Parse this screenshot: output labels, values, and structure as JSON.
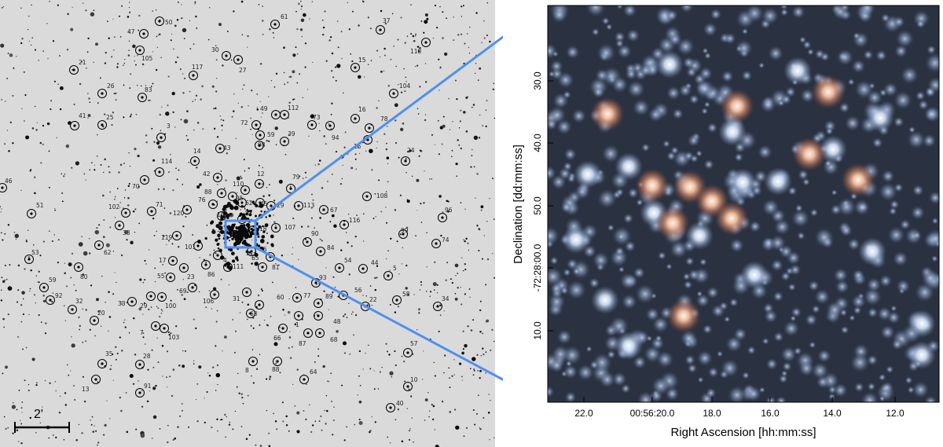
{
  "field": {
    "scale_bar_label": "2'",
    "stars": [
      {
        "id": "50",
        "x": 203,
        "y": 27,
        "lx": 210,
        "ly": 31
      },
      {
        "id": "47",
        "x": 183,
        "y": 43,
        "lx": 162,
        "ly": 43
      },
      {
        "id": "105",
        "x": 178,
        "y": 64,
        "lx": 180,
        "ly": 77
      },
      {
        "id": "61",
        "x": 350,
        "y": 31,
        "lx": 357,
        "ly": 24
      },
      {
        "id": "37",
        "x": 484,
        "y": 38,
        "lx": 487,
        "ly": 29
      },
      {
        "id": "118",
        "x": 542,
        "y": 54,
        "lx": 522,
        "ly": 68
      },
      {
        "id": "30",
        "x": 288,
        "y": 71,
        "lx": 269,
        "ly": 66
      },
      {
        "id": "27",
        "x": 303,
        "y": 76,
        "lx": 304,
        "ly": 92
      },
      {
        "id": "15",
        "x": 452,
        "y": 86,
        "lx": 456,
        "ly": 79
      },
      {
        "id": "21",
        "x": 94,
        "y": 89,
        "lx": 100,
        "ly": 82
      },
      {
        "id": "117",
        "x": 246,
        "y": 96,
        "lx": 244,
        "ly": 88
      },
      {
        "id": "104",
        "x": 501,
        "y": 119,
        "lx": 508,
        "ly": 112
      },
      {
        "id": "26",
        "x": 130,
        "y": 119,
        "lx": 136,
        "ly": 112
      },
      {
        "id": "83",
        "x": 181,
        "y": 124,
        "lx": 184,
        "ly": 117
      },
      {
        "id": "49",
        "x": 351,
        "y": 146,
        "lx": 331,
        "ly": 141
      },
      {
        "id": "112",
        "x": 362,
        "y": 146,
        "lx": 366,
        "ly": 140
      },
      {
        "id": "16",
        "x": 452,
        "y": 151,
        "lx": 456,
        "ly": 142
      },
      {
        "id": "78",
        "x": 470,
        "y": 163,
        "lx": 484,
        "ly": 154
      },
      {
        "id": "41",
        "x": 95,
        "y": 160,
        "lx": 100,
        "ly": 150
      },
      {
        "id": "25",
        "x": 130,
        "y": 159,
        "lx": 135,
        "ly": 152
      },
      {
        "id": "72",
        "x": 326,
        "y": 159,
        "lx": 306,
        "ly": 159
      },
      {
        "id": "73",
        "x": 397,
        "y": 159,
        "lx": 398,
        "ly": 152
      },
      {
        "id": "3",
        "x": 205,
        "y": 175,
        "lx": 212,
        "ly": 163
      },
      {
        "id": "59",
        "x": 331,
        "y": 172,
        "lx": 340,
        "ly": 174
      },
      {
        "id": "94",
        "x": 420,
        "y": 160,
        "lx": 422,
        "ly": 178
      },
      {
        "id": "98",
        "x": 330,
        "y": 185,
        "lx": 328,
        "ly": 187
      },
      {
        "id": "39",
        "x": 362,
        "y": 180,
        "lx": 366,
        "ly": 173
      },
      {
        "id": "15b",
        "x": 468,
        "y": 178,
        "lx": 450,
        "ly": 189
      },
      {
        "id": "24",
        "x": 516,
        "y": 205,
        "lx": 518,
        "ly": 194
      },
      {
        "id": "43",
        "x": 280,
        "y": 189,
        "lx": 284,
        "ly": 191
      },
      {
        "id": "14",
        "x": 248,
        "y": 205,
        "lx": 246,
        "ly": 195
      },
      {
        "id": "114",
        "x": 203,
        "y": 219,
        "lx": 205,
        "ly": 208
      },
      {
        "id": "42",
        "x": 277,
        "y": 226,
        "lx": 258,
        "ly": 224
      },
      {
        "id": "12",
        "x": 330,
        "y": 234,
        "lx": 327,
        "ly": 224
      },
      {
        "id": "79",
        "x": 370,
        "y": 240,
        "lx": 372,
        "ly": 228
      },
      {
        "id": "70",
        "x": 184,
        "y": 229,
        "lx": 168,
        "ly": 240
      },
      {
        "id": "110",
        "x": 312,
        "y": 242,
        "lx": 296,
        "ly": 237
      },
      {
        "id": "46",
        "x": 3,
        "y": 239,
        "lx": 6,
        "ly": 233
      },
      {
        "id": "88",
        "x": 282,
        "y": 246,
        "lx": 260,
        "ly": 247
      },
      {
        "id": "95",
        "x": 296,
        "y": 250,
        "lx": 300,
        "ly": 255
      },
      {
        "id": "62",
        "x": 308,
        "y": 258,
        "lx": 312,
        "ly": 261
      },
      {
        "id": "45",
        "x": 331,
        "y": 258,
        "lx": 331,
        "ly": 262
      },
      {
        "id": "108",
        "x": 467,
        "y": 250,
        "lx": 479,
        "ly": 252
      },
      {
        "id": "113",
        "x": 380,
        "y": 262,
        "lx": 386,
        "ly": 264
      },
      {
        "id": "29",
        "x": 345,
        "y": 262,
        "lx": 352,
        "ly": 264
      },
      {
        "id": "76",
        "x": 271,
        "y": 260,
        "lx": 252,
        "ly": 257
      },
      {
        "id": "51",
        "x": 40,
        "y": 272,
        "lx": 46,
        "ly": 264
      },
      {
        "id": "102",
        "x": 160,
        "y": 271,
        "lx": 138,
        "ly": 266
      },
      {
        "id": "71",
        "x": 193,
        "y": 269,
        "lx": 198,
        "ly": 263
      },
      {
        "id": "120",
        "x": 238,
        "y": 267,
        "lx": 220,
        "ly": 274
      },
      {
        "id": "109",
        "x": 282,
        "y": 275,
        "lx": 276,
        "ly": 276
      },
      {
        "id": "97",
        "x": 308,
        "y": 279,
        "lx": 312,
        "ly": 273
      },
      {
        "id": "67",
        "x": 412,
        "y": 267,
        "lx": 420,
        "ly": 270
      },
      {
        "id": "96",
        "x": 563,
        "y": 277,
        "lx": 566,
        "ly": 270
      },
      {
        "id": "116",
        "x": 438,
        "y": 286,
        "lx": 444,
        "ly": 283
      },
      {
        "id": "38",
        "x": 152,
        "y": 287,
        "lx": 156,
        "ly": 299
      },
      {
        "id": "18",
        "x": 322,
        "y": 293,
        "lx": 330,
        "ly": 294
      },
      {
        "id": "107",
        "x": 351,
        "y": 290,
        "lx": 362,
        "ly": 292
      },
      {
        "id": "99",
        "x": 513,
        "y": 298,
        "lx": 510,
        "ly": 296
      },
      {
        "id": "119",
        "x": 225,
        "y": 300,
        "lx": 205,
        "ly": 305
      },
      {
        "id": "90",
        "x": 391,
        "y": 308,
        "lx": 396,
        "ly": 300
      },
      {
        "id": "74",
        "x": 555,
        "y": 310,
        "lx": 562,
        "ly": 308
      },
      {
        "id": "62b",
        "x": 126,
        "y": 312,
        "lx": 132,
        "ly": 324
      },
      {
        "id": "101",
        "x": 252,
        "y": 313,
        "lx": 235,
        "ly": 317
      },
      {
        "id": "2",
        "x": 291,
        "y": 297,
        "lx": 276,
        "ly": 300
      },
      {
        "id": "36",
        "x": 320,
        "y": 320,
        "lx": 330,
        "ly": 320
      },
      {
        "id": "84",
        "x": 408,
        "y": 320,
        "lx": 416,
        "ly": 318
      },
      {
        "id": "53",
        "x": 37,
        "y": 330,
        "lx": 40,
        "ly": 324
      },
      {
        "id": "17",
        "x": 220,
        "y": 332,
        "lx": 202,
        "ly": 334
      },
      {
        "id": "65",
        "x": 344,
        "y": 327,
        "lx": 320,
        "ly": 331
      },
      {
        "id": "4",
        "x": 277,
        "y": 325,
        "lx": 284,
        "ly": 334
      },
      {
        "id": "54",
        "x": 432,
        "y": 341,
        "lx": 438,
        "ly": 334
      },
      {
        "id": "44",
        "x": 462,
        "y": 342,
        "lx": 472,
        "ly": 337
      },
      {
        "id": "81",
        "x": 334,
        "y": 340,
        "lx": 346,
        "ly": 343
      },
      {
        "id": "111",
        "x": 290,
        "y": 340,
        "lx": 296,
        "ly": 342
      },
      {
        "id": "80",
        "x": 100,
        "y": 340,
        "lx": 102,
        "ly": 355
      },
      {
        "id": "23",
        "x": 234,
        "y": 341,
        "lx": 238,
        "ly": 355
      },
      {
        "id": "86",
        "x": 262,
        "y": 337,
        "lx": 264,
        "ly": 352
      },
      {
        "id": "5",
        "x": 494,
        "y": 351,
        "lx": 500,
        "ly": 344
      },
      {
        "id": "55",
        "x": 217,
        "y": 353,
        "lx": 200,
        "ly": 354
      },
      {
        "id": "93",
        "x": 402,
        "y": 360,
        "lx": 406,
        "ly": 356
      },
      {
        "id": "59b",
        "x": 56,
        "y": 366,
        "lx": 62,
        "ly": 359
      },
      {
        "id": "69",
        "x": 245,
        "y": 366,
        "lx": 228,
        "ly": 373
      },
      {
        "id": "56",
        "x": 437,
        "y": 376,
        "lx": 451,
        "ly": 372
      },
      {
        "id": "58",
        "x": 505,
        "y": 382,
        "lx": 512,
        "ly": 377
      },
      {
        "id": "92",
        "x": 64,
        "y": 382,
        "lx": 70,
        "ly": 379
      },
      {
        "id": "77",
        "x": 378,
        "y": 379,
        "lx": 386,
        "ly": 379
      },
      {
        "id": "89",
        "x": 405,
        "y": 386,
        "lx": 414,
        "ly": 380
      },
      {
        "id": "29b",
        "x": 192,
        "y": 377,
        "lx": 178,
        "ly": 392
      },
      {
        "id": "100",
        "x": 206,
        "y": 378,
        "lx": 210,
        "ly": 392
      },
      {
        "id": "60",
        "x": 330,
        "y": 388,
        "lx": 352,
        "ly": 381
      },
      {
        "id": "31",
        "x": 314,
        "y": 372,
        "lx": 296,
        "ly": 383
      },
      {
        "id": "22",
        "x": 465,
        "y": 390,
        "lx": 470,
        "ly": 384
      },
      {
        "id": "34",
        "x": 557,
        "y": 390,
        "lx": 562,
        "ly": 383
      },
      {
        "id": "32",
        "x": 92,
        "y": 394,
        "lx": 96,
        "ly": 386
      },
      {
        "id": "33",
        "x": 168,
        "y": 384,
        "lx": 150,
        "ly": 389
      },
      {
        "id": "106",
        "x": 273,
        "y": 375,
        "lx": 258,
        "ly": 386
      },
      {
        "id": "1",
        "x": 380,
        "y": 402,
        "lx": 376,
        "ly": 416
      },
      {
        "id": "48",
        "x": 405,
        "y": 402,
        "lx": 424,
        "ly": 412
      },
      {
        "id": "63",
        "x": 319,
        "y": 399,
        "lx": 318,
        "ly": 402
      },
      {
        "id": "20",
        "x": 120,
        "y": 408,
        "lx": 124,
        "ly": 401
      },
      {
        "id": "7",
        "x": 198,
        "y": 415,
        "lx": 178,
        "ly": 426
      },
      {
        "id": "66",
        "x": 360,
        "y": 418,
        "lx": 348,
        "ly": 433
      },
      {
        "id": "87",
        "x": 392,
        "y": 424,
        "lx": 380,
        "ly": 440
      },
      {
        "id": "68",
        "x": 407,
        "y": 424,
        "lx": 420,
        "ly": 435
      },
      {
        "id": "103",
        "x": 209,
        "y": 418,
        "lx": 214,
        "ly": 432
      },
      {
        "id": "57",
        "x": 519,
        "y": 449,
        "lx": 522,
        "ly": 440
      },
      {
        "id": "35",
        "x": 130,
        "y": 463,
        "lx": 134,
        "ly": 453
      },
      {
        "id": "28",
        "x": 178,
        "y": 464,
        "lx": 182,
        "ly": 456
      },
      {
        "id": "8",
        "x": 322,
        "y": 460,
        "lx": 312,
        "ly": 474
      },
      {
        "id": "88b",
        "x": 353,
        "y": 460,
        "lx": 346,
        "ly": 473
      },
      {
        "id": "64",
        "x": 387,
        "y": 483,
        "lx": 394,
        "ly": 476
      },
      {
        "id": "13",
        "x": 122,
        "y": 483,
        "lx": 104,
        "ly": 498
      },
      {
        "id": "91",
        "x": 178,
        "y": 500,
        "lx": 183,
        "ly": 494
      },
      {
        "id": "10",
        "x": 519,
        "y": 492,
        "lx": 522,
        "ly": 486
      },
      {
        "id": "40",
        "x": 497,
        "y": 519,
        "lx": 504,
        "ly": 516
      }
    ]
  },
  "zoom": {
    "y_axis_title": "Declination [dd:mm:ss]",
    "x_axis_title": "Right Ascension [hh:mm:ss]",
    "y_ticks": [
      "30.0",
      "40.0",
      "50.0",
      "-72:28:00.0",
      "10.0"
    ],
    "x_ticks": [
      "22.0",
      "00:56:20.0",
      "18.0",
      "16.0",
      "14.0",
      "12.0"
    ]
  },
  "colors": {
    "connector": "#4f8ff0",
    "circle": "#000000",
    "field_bg": "#dadada"
  }
}
